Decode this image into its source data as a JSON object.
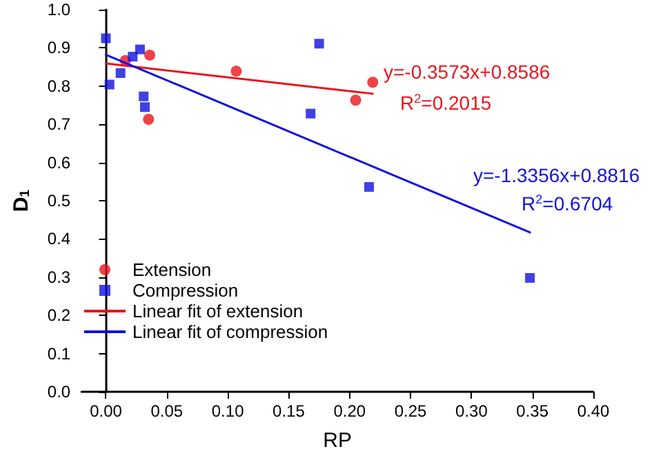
{
  "chart_data": {
    "type": "scatter",
    "xlabel": "RP",
    "ylabel": "D$_{1}$",
    "xlim": [
      -0.02,
      0.4
    ],
    "xticks": [
      {
        "value": 0,
        "label": "0.00"
      },
      {
        "value": 0.05,
        "label": "0.05"
      },
      {
        "value": 0.1,
        "label": "0.10"
      },
      {
        "value": 0.15,
        "label": "0.15"
      },
      {
        "value": 0.2,
        "label": "0.20"
      },
      {
        "value": 0.25,
        "label": "0.25"
      },
      {
        "value": 0.3,
        "label": "0.30"
      },
      {
        "value": 0.35,
        "label": "0.35"
      },
      {
        "value": 0.4,
        "label": "0.40"
      }
    ],
    "ylim": [
      0,
      1
    ],
    "yticks": [
      {
        "value": 0,
        "label": "0.0"
      },
      {
        "value": 0.1,
        "label": "0.1"
      },
      {
        "value": 0.2,
        "label": "0.2"
      },
      {
        "value": 0.3,
        "label": "0.3"
      },
      {
        "value": 0.4,
        "label": "0.4"
      },
      {
        "value": 0.5,
        "label": "0.5"
      },
      {
        "value": 0.6,
        "label": "0.6"
      },
      {
        "value": 0.7,
        "label": "0.7"
      },
      {
        "value": 0.8,
        "label": "0.8"
      },
      {
        "value": 0.9,
        "label": "0.9"
      },
      {
        "value": 1,
        "label": "1.0"
      }
    ],
    "grid": false,
    "legend": "bottom left",
    "series": [
      {
        "name": "Extension",
        "marker": "circle",
        "color": "#e8141c",
        "x": [
          0.016,
          0.036,
          0.035,
          0.107,
          0.219,
          0.205
        ],
        "values": [
          0.867,
          0.881,
          0.713,
          0.839,
          0.81,
          0.763
        ]
      },
      {
        "name": "Compression",
        "marker": "square",
        "color": "#1010e0",
        "x": [
          0.0,
          0.003,
          0.012,
          0.022,
          0.028,
          0.031,
          0.032,
          0.175,
          0.168,
          0.216,
          0.348
        ],
        "values": [
          0.925,
          0.804,
          0.834,
          0.877,
          0.896,
          0.773,
          0.745,
          0.911,
          0.728,
          0.536,
          0.298
        ]
      },
      {
        "name": "Linear fit of extension",
        "type": "line",
        "marker": "none",
        "line_style": "solid",
        "color": "#e8141c",
        "x": [
          0,
          0.219
        ],
        "values": [
          0.859,
          0.78
        ]
      },
      {
        "name": "Linear fit of compression",
        "type": "line",
        "marker": "none",
        "line_style": "solid",
        "color": "#1010e0",
        "x": [
          0,
          0.348
        ],
        "values": [
          0.882,
          0.417
        ]
      }
    ],
    "annotations": [
      "y=-0.3573x+0.8586",
      "R$^{2}$=0.2015",
      "y=-1.3356x+0.8816",
      "R$^{2}$=0.6704"
    ]
  }
}
